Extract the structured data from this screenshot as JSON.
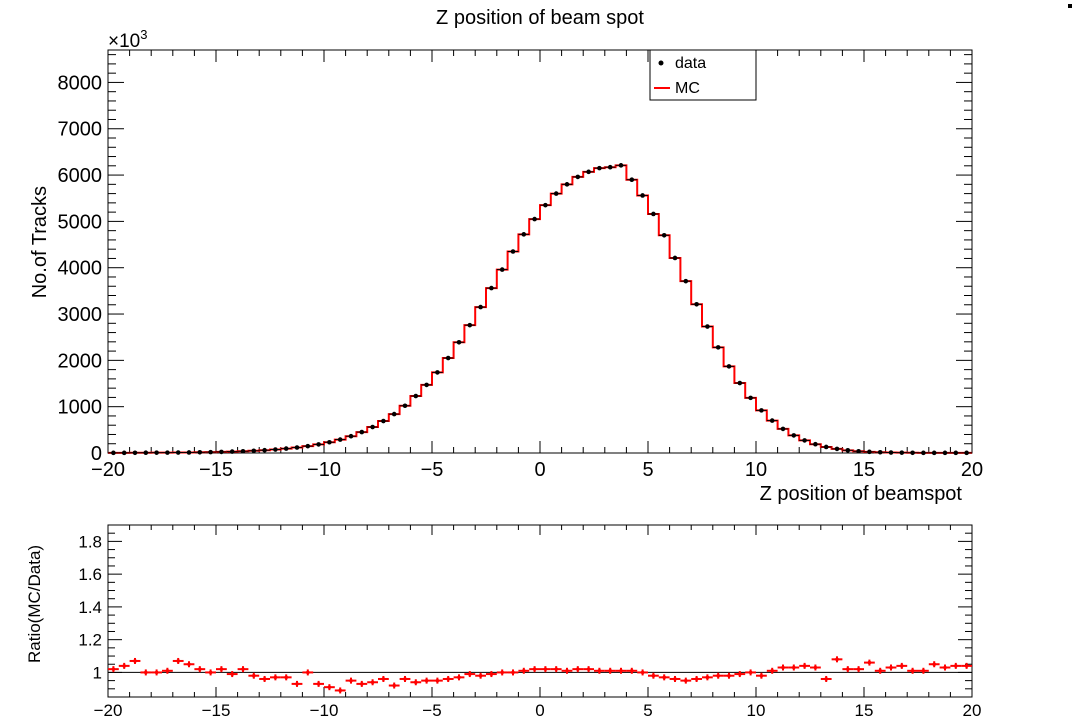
{
  "chart_data": [
    {
      "type": "line",
      "title": "Z position of beam spot",
      "xlabel": "Z position of beamspot",
      "ylabel": "No.of Tracks",
      "y_multiplier": "×10^3",
      "xlim": [
        -20,
        20
      ],
      "ylim": [
        0,
        8700
      ],
      "x_ticks": [
        -20,
        -15,
        -10,
        -5,
        0,
        5,
        10,
        15,
        20
      ],
      "y_ticks": [
        0,
        1000,
        2000,
        3000,
        4000,
        5000,
        6000,
        7000,
        8000
      ],
      "legend_position": "top-right",
      "legend": [
        {
          "label": "data",
          "marker": "point",
          "color": "#000000"
        },
        {
          "label": "MC",
          "marker": "line",
          "color": "#ff0000"
        }
      ],
      "bin_width": 0.5,
      "x": [
        -19.75,
        -19.25,
        -18.75,
        -18.25,
        -17.75,
        -17.25,
        -16.75,
        -16.25,
        -15.75,
        -15.25,
        -14.75,
        -14.25,
        -13.75,
        -13.25,
        -12.75,
        -12.25,
        -11.75,
        -11.25,
        -10.75,
        -10.25,
        -9.75,
        -9.25,
        -8.75,
        -8.25,
        -7.75,
        -7.25,
        -6.75,
        -6.25,
        -5.75,
        -5.25,
        -4.75,
        -4.25,
        -3.75,
        -3.25,
        -2.75,
        -2.25,
        -1.75,
        -1.25,
        -0.75,
        -0.25,
        0.25,
        0.75,
        1.25,
        1.75,
        2.25,
        2.75,
        3.25,
        3.75,
        4.25,
        4.75,
        5.25,
        5.75,
        6.25,
        6.75,
        7.25,
        7.75,
        8.25,
        8.75,
        9.25,
        9.75,
        10.25,
        10.75,
        11.25,
        11.75,
        12.25,
        12.75,
        13.25,
        13.75,
        14.25,
        14.75,
        15.25,
        15.75,
        16.25,
        16.75,
        17.25,
        17.75,
        18.25,
        18.75,
        19.25,
        19.75
      ],
      "series": [
        {
          "name": "data",
          "color": "#000000",
          "values": [
            3,
            4,
            5,
            6,
            7,
            8,
            10,
            12,
            15,
            19,
            24,
            30,
            38,
            48,
            60,
            75,
            95,
            118,
            148,
            185,
            232,
            290,
            362,
            452,
            560,
            690,
            840,
            1020,
            1230,
            1470,
            1740,
            2050,
            2390,
            2760,
            3150,
            3560,
            3960,
            4350,
            4720,
            5050,
            5350,
            5600,
            5800,
            5960,
            6070,
            6150,
            6170,
            6210,
            5900,
            5560,
            5160,
            4700,
            4210,
            3710,
            3210,
            2730,
            2280,
            1870,
            1510,
            1190,
            920,
            700,
            520,
            380,
            272,
            190,
            130,
            88,
            58,
            38,
            25,
            16,
            10,
            7,
            5,
            4,
            3,
            3,
            3,
            3
          ]
        },
        {
          "name": "MC",
          "color": "#ff0000",
          "values": [
            3,
            4,
            5,
            6,
            7,
            8,
            10,
            12,
            15,
            19,
            24,
            30,
            38,
            48,
            60,
            75,
            95,
            118,
            148,
            185,
            232,
            290,
            362,
            452,
            560,
            690,
            840,
            1020,
            1230,
            1470,
            1740,
            2050,
            2390,
            2760,
            3150,
            3560,
            3960,
            4350,
            4720,
            5050,
            5350,
            5600,
            5800,
            5960,
            6070,
            6150,
            6170,
            6210,
            5900,
            5560,
            5160,
            4700,
            4210,
            3710,
            3210,
            2730,
            2280,
            1870,
            1510,
            1190,
            920,
            700,
            520,
            380,
            272,
            190,
            130,
            88,
            58,
            38,
            25,
            16,
            10,
            7,
            5,
            4,
            3,
            3,
            3,
            3
          ]
        }
      ]
    },
    {
      "type": "scatter",
      "ylabel": "Ratio(MC/Data)",
      "xlim": [
        -20,
        20
      ],
      "ylim": [
        0.85,
        1.9
      ],
      "x_ticks": [
        -20,
        -15,
        -10,
        -5,
        0,
        5,
        10,
        15,
        20
      ],
      "y_ticks": [
        1,
        1.2,
        1.4,
        1.6,
        1.8
      ],
      "reference_line": 1,
      "series": [
        {
          "name": "",
          "color": "#ff0000",
          "x": [
            -19.75,
            -19.25,
            -18.75,
            -18.25,
            -17.75,
            -17.25,
            -16.75,
            -16.25,
            -15.75,
            -15.25,
            -14.75,
            -14.25,
            -13.75,
            -13.25,
            -12.75,
            -12.25,
            -11.75,
            -11.25,
            -10.75,
            -10.25,
            -9.75,
            -9.25,
            -8.75,
            -8.25,
            -7.75,
            -7.25,
            -6.75,
            -6.25,
            -5.75,
            -5.25,
            -4.75,
            -4.25,
            -3.75,
            -3.25,
            -2.75,
            -2.25,
            -1.75,
            -1.25,
            -0.75,
            -0.25,
            0.25,
            0.75,
            1.25,
            1.75,
            2.25,
            2.75,
            3.25,
            3.75,
            4.25,
            4.75,
            5.25,
            5.75,
            6.25,
            6.75,
            7.25,
            7.75,
            8.25,
            8.75,
            9.25,
            9.75,
            10.25,
            10.75,
            11.25,
            11.75,
            12.25,
            12.75,
            13.25,
            13.75,
            14.25,
            14.75,
            15.25,
            15.75,
            16.25,
            16.75,
            17.25,
            17.75,
            18.25,
            18.75,
            19.25,
            19.75
          ],
          "values": [
            1.02,
            1.04,
            1.07,
            1.0,
            1.0,
            1.01,
            1.07,
            1.05,
            1.02,
            1.0,
            1.02,
            0.99,
            1.02,
            0.98,
            0.96,
            0.97,
            0.97,
            0.93,
            1.0,
            0.93,
            0.91,
            0.89,
            0.95,
            0.93,
            0.94,
            0.96,
            0.92,
            0.96,
            0.94,
            0.95,
            0.95,
            0.96,
            0.97,
            0.99,
            0.98,
            0.99,
            1.0,
            1.0,
            1.01,
            1.02,
            1.02,
            1.02,
            1.01,
            1.02,
            1.02,
            1.01,
            1.01,
            1.01,
            1.01,
            1.0,
            0.98,
            0.97,
            0.96,
            0.95,
            0.96,
            0.97,
            0.98,
            0.98,
            0.99,
            1.0,
            0.98,
            1.01,
            1.03,
            1.03,
            1.04,
            1.03,
            0.96,
            1.08,
            1.02,
            1.02,
            1.06,
            1.01,
            1.03,
            1.04,
            1.01,
            1.01,
            1.05,
            1.03,
            1.04,
            1.04
          ]
        }
      ]
    }
  ]
}
